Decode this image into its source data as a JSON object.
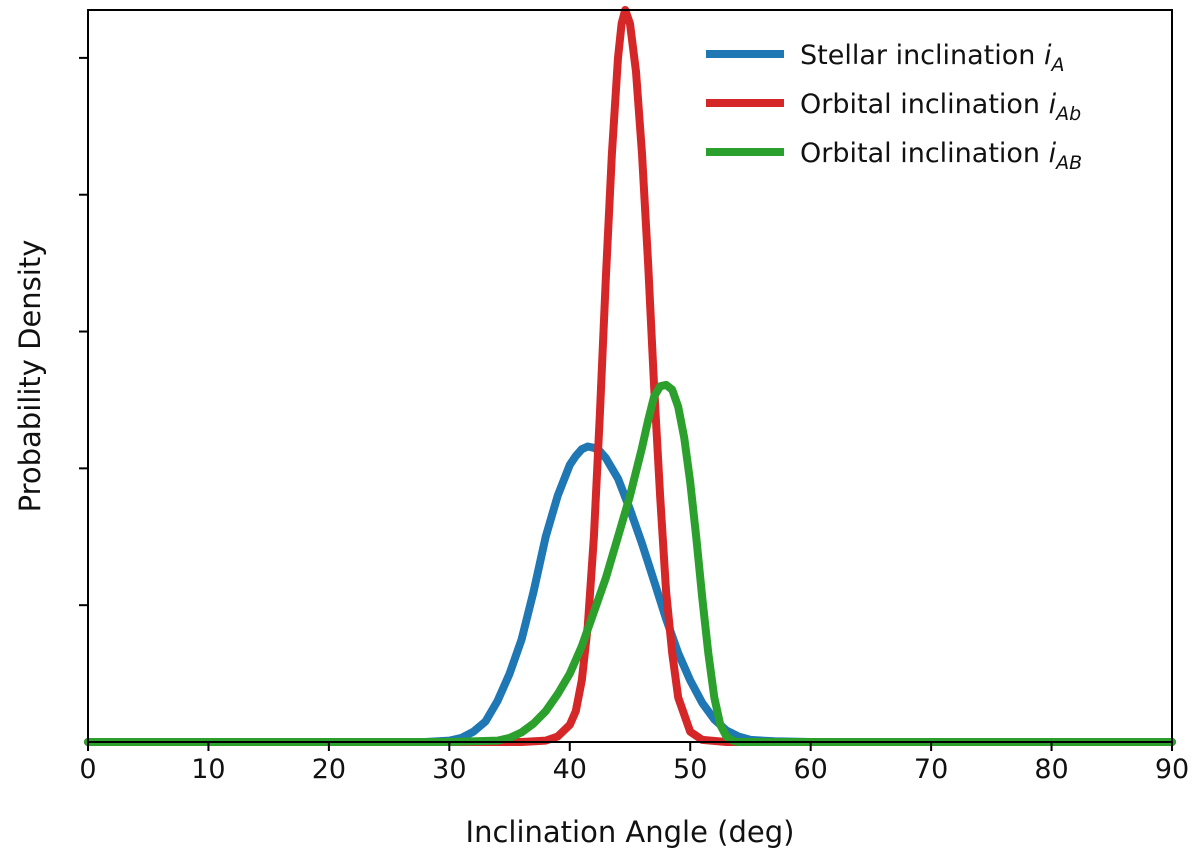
{
  "chart_data": {
    "type": "line",
    "xlabel": "Inclination Angle (deg)",
    "ylabel": "Probability Density",
    "xlim": [
      0,
      90
    ],
    "ylim": [
      0,
      1.07
    ],
    "xticks": [
      0,
      10,
      20,
      30,
      40,
      50,
      60,
      70,
      80,
      90
    ],
    "yticks_unlabeled": [
      0.2,
      0.4,
      0.6,
      0.8,
      1.0
    ],
    "grid": false,
    "legend_position": "top-right",
    "series": [
      {
        "name": "Stellar inclination",
        "symbol": "i",
        "subscript": "A",
        "color": "#1f77b4",
        "x": [
          0,
          10,
          20,
          28,
          30,
          31,
          32,
          33,
          34,
          35,
          36,
          37,
          38,
          39,
          40,
          40.5,
          41,
          41.5,
          42,
          42.5,
          43,
          44,
          45,
          46,
          47,
          48,
          49,
          50,
          51,
          52,
          53,
          54,
          55,
          57,
          60,
          70,
          80,
          90
        ],
        "y": [
          0,
          0,
          0,
          0,
          0.002,
          0.006,
          0.015,
          0.03,
          0.06,
          0.1,
          0.15,
          0.22,
          0.3,
          0.36,
          0.405,
          0.418,
          0.428,
          0.432,
          0.43,
          0.425,
          0.415,
          0.385,
          0.34,
          0.29,
          0.235,
          0.18,
          0.13,
          0.09,
          0.057,
          0.033,
          0.017,
          0.008,
          0.003,
          0.001,
          0,
          0,
          0,
          0
        ]
      },
      {
        "name": "Orbital inclination",
        "symbol": "i",
        "subscript": "Ab",
        "color": "#d62728",
        "x": [
          0,
          10,
          20,
          30,
          36,
          38,
          39,
          40,
          40.5,
          41,
          41.5,
          42,
          42.5,
          43,
          43.5,
          44,
          44.3,
          44.6,
          45,
          45.5,
          46,
          46.5,
          47,
          47.5,
          48,
          48.5,
          49,
          50,
          51,
          53,
          60,
          70,
          80,
          90
        ],
        "y": [
          0,
          0,
          0,
          0,
          0,
          0.002,
          0.008,
          0.025,
          0.045,
          0.09,
          0.17,
          0.3,
          0.48,
          0.68,
          0.86,
          1.0,
          1.05,
          1.07,
          1.05,
          0.98,
          0.86,
          0.7,
          0.52,
          0.36,
          0.22,
          0.13,
          0.065,
          0.015,
          0.003,
          0,
          0,
          0,
          0,
          0
        ]
      },
      {
        "name": "Orbital inclination",
        "symbol": "i",
        "subscript": "AB",
        "color": "#2ca02c",
        "x": [
          0,
          10,
          20,
          30,
          34,
          35,
          36,
          37,
          38,
          39,
          40,
          41,
          42,
          43,
          44,
          45,
          46,
          46.5,
          47,
          47.5,
          48,
          48.5,
          49,
          49.5,
          50,
          50.5,
          51,
          51.5,
          52,
          52.5,
          53,
          53.5,
          54,
          55,
          60,
          70,
          80,
          90
        ],
        "y": [
          0,
          0,
          0,
          0,
          0.002,
          0.006,
          0.014,
          0.027,
          0.045,
          0.07,
          0.1,
          0.14,
          0.19,
          0.24,
          0.3,
          0.36,
          0.43,
          0.47,
          0.505,
          0.52,
          0.522,
          0.515,
          0.49,
          0.445,
          0.38,
          0.3,
          0.21,
          0.13,
          0.065,
          0.025,
          0.008,
          0.002,
          0,
          0,
          0,
          0,
          0,
          0
        ]
      }
    ]
  }
}
